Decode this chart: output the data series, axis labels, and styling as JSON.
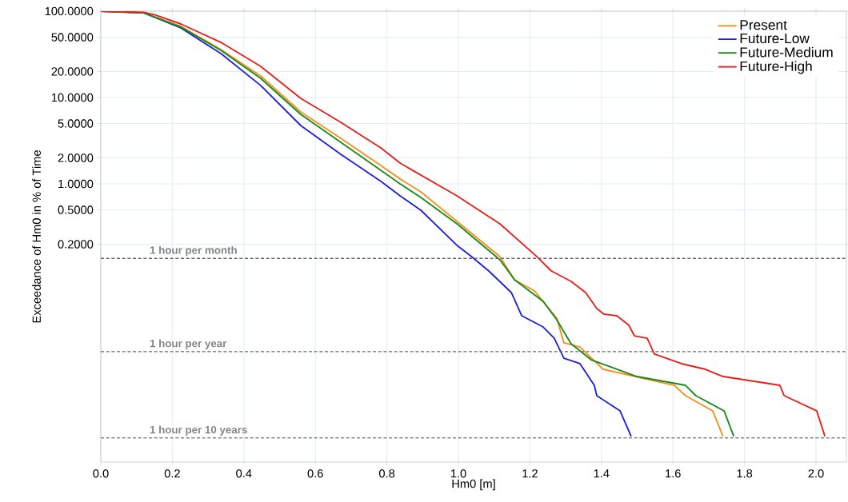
{
  "chart_data": {
    "type": "line",
    "xlabel": "Hm0 [m]",
    "ylabel": "Exceedance of Hm0 in % of Time",
    "log": "y",
    "grid": true,
    "legend": "top right",
    "marker": "none",
    "line_style": "solid",
    "xlim": [
      0,
      2.085
    ],
    "ylim": [
      0.0006,
      100
    ],
    "xticks": [
      {
        "value": 0,
        "label": "0.0"
      },
      {
        "value": 0.2,
        "label": "0.2"
      },
      {
        "value": 0.4,
        "label": "0.4"
      },
      {
        "value": 0.6,
        "label": "0.6"
      },
      {
        "value": 0.8,
        "label": "0.8"
      },
      {
        "value": 1.0,
        "label": "1.0"
      },
      {
        "value": 1.2,
        "label": "1.2"
      },
      {
        "value": 1.4,
        "label": "1.4"
      },
      {
        "value": 1.6,
        "label": "1.6"
      },
      {
        "value": 1.8,
        "label": "1.8"
      },
      {
        "value": 2.0,
        "label": "2.0"
      }
    ],
    "yticks": [
      {
        "value": 0.2,
        "label": "0.2000"
      },
      {
        "value": 0.5,
        "label": "0.5000"
      },
      {
        "value": 1,
        "label": "1.0000"
      },
      {
        "value": 2,
        "label": "2.0000"
      },
      {
        "value": 5,
        "label": "5.0000"
      },
      {
        "value": 10,
        "label": "10.0000"
      },
      {
        "value": 20,
        "label": "20.0000"
      },
      {
        "value": 50,
        "label": "50.0000"
      },
      {
        "value": 100,
        "label": "100.0000"
      }
    ],
    "ref_lines": [
      {
        "axis": "y",
        "value": 0.137,
        "label": "1 hour per month",
        "color": "#666666",
        "line_style": "dashed"
      },
      {
        "axis": "y",
        "value": 0.0114,
        "label": "1 hour per year",
        "color": "#666666",
        "line_style": "dashed"
      },
      {
        "axis": "y",
        "value": 0.00114,
        "label": "1 hour per 10 years",
        "color": "#666666",
        "line_style": "dashed"
      }
    ],
    "series": [
      {
        "name": "Present",
        "color": "#f5901e",
        "x": [
          0,
          0.12,
          0.224,
          0.336,
          0.447,
          0.559,
          0.671,
          0.783,
          0.837,
          0.895,
          0.996,
          1.116,
          1.157,
          1.213,
          1.237,
          1.275,
          1.295,
          1.34,
          1.405,
          1.604,
          1.635,
          1.711,
          1.74
        ],
        "values": [
          100,
          95.5,
          66.7,
          35.9,
          17.8,
          6.81,
          3.37,
          1.63,
          1.14,
          0.808,
          0.367,
          0.144,
          0.0774,
          0.0574,
          0.0435,
          0.0278,
          0.0144,
          0.0129,
          0.00711,
          0.00464,
          0.00352,
          0.00235,
          0.00119
        ]
      },
      {
        "name": "Future-Low",
        "color": "#1f1fe0",
        "x": [
          0,
          0.12,
          0.224,
          0.336,
          0.447,
          0.559,
          0.671,
          0.783,
          0.837,
          0.895,
          0.996,
          1.034,
          1.085,
          1.148,
          1.177,
          1.237,
          1.268,
          1.295,
          1.34,
          1.38,
          1.387,
          1.452,
          1.483
        ],
        "values": [
          100,
          95.5,
          63.9,
          32.3,
          13.8,
          4.74,
          2.2,
          1.07,
          0.726,
          0.495,
          0.194,
          0.147,
          0.098,
          0.0551,
          0.0297,
          0.022,
          0.0163,
          0.00958,
          0.00826,
          0.00464,
          0.00352,
          0.00235,
          0.00119
        ]
      },
      {
        "name": "Future-Medium",
        "color": "#1a8a1a",
        "x": [
          0,
          0.12,
          0.224,
          0.336,
          0.447,
          0.559,
          0.671,
          0.783,
          0.837,
          0.895,
          0.996,
          1.116,
          1.157,
          1.237,
          1.275,
          1.315,
          1.371,
          1.499,
          1.635,
          1.664,
          1.743,
          1.77
        ],
        "values": [
          100,
          95.5,
          65.5,
          35.2,
          16.7,
          6.39,
          3.03,
          1.44,
          1.0,
          0.696,
          0.344,
          0.132,
          0.0774,
          0.0435,
          0.0267,
          0.0141,
          0.00918,
          0.00587,
          0.00464,
          0.00352,
          0.00235,
          0.00119
        ]
      },
      {
        "name": "Future-High",
        "color": "#e8201a",
        "x": [
          0,
          0.12,
          0.15,
          0.224,
          0.336,
          0.447,
          0.559,
          0.671,
          0.783,
          0.837,
          0.996,
          1.116,
          1.219,
          1.26,
          1.315,
          1.356,
          1.387,
          1.407,
          1.443,
          1.477,
          1.492,
          1.528,
          1.548,
          1.624,
          1.691,
          1.74,
          1.899,
          1.911,
          2.002,
          2.025
        ],
        "values": [
          100,
          97,
          91.2,
          71.1,
          43.5,
          23.0,
          9.79,
          5.16,
          2.61,
          1.74,
          0.726,
          0.344,
          0.144,
          0.098,
          0.0742,
          0.0551,
          0.036,
          0.031,
          0.0297,
          0.023,
          0.0174,
          0.0163,
          0.0107,
          0.00826,
          0.00711,
          0.00587,
          0.00464,
          0.00352,
          0.00235,
          0.00119
        ]
      }
    ]
  }
}
